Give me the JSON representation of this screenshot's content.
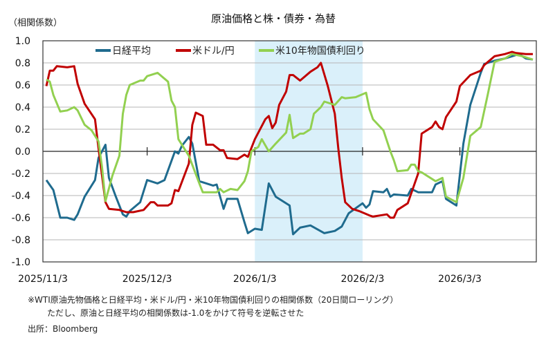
{
  "chart_data": {
    "type": "line",
    "title": "原油価格と株・債券・為替",
    "ylabel": "（相関係数）",
    "ylim": [
      -1.0,
      1.0
    ],
    "yticks": [
      "1.0",
      "0.8",
      "0.6",
      "0.4",
      "0.2",
      "0.0",
      "-0.2",
      "-0.4",
      "-0.6",
      "-0.8",
      "-1.0"
    ],
    "xlim": [
      "2025-11-03",
      "2026-03-25"
    ],
    "xticks": [
      {
        "date": "2025-11-03",
        "label": "2025/11/3"
      },
      {
        "date": "2025-12-03",
        "label": "2025/12/3"
      },
      {
        "date": "2026-01-03",
        "label": "2026/1/3"
      },
      {
        "date": "2026-02-03",
        "label": "2026/2/3"
      },
      {
        "date": "2026-03-03",
        "label": "2026/3/3"
      }
    ],
    "grid": true,
    "legend_placement": "top",
    "highlight_period": {
      "start": "2026-01-03",
      "end": "2026-02-03",
      "color": "#DAF0FA"
    },
    "series": [
      {
        "name": "日経平均",
        "color": "#1F6B8E",
        "points": [
          [
            "2025-11-04",
            -0.26
          ],
          [
            "2025-11-06",
            -0.35
          ],
          [
            "2025-11-08",
            -0.6
          ],
          [
            "2025-11-10",
            -0.6
          ],
          [
            "2025-11-12",
            -0.62
          ],
          [
            "2025-11-13",
            -0.57
          ],
          [
            "2025-11-15",
            -0.41
          ],
          [
            "2025-11-18",
            -0.26
          ],
          [
            "2025-11-19",
            -0.06
          ],
          [
            "2025-11-21",
            0.06
          ],
          [
            "2025-11-22",
            -0.24
          ],
          [
            "2025-11-24",
            -0.41
          ],
          [
            "2025-11-26",
            -0.57
          ],
          [
            "2025-11-27",
            -0.59
          ],
          [
            "2025-11-28",
            -0.54
          ],
          [
            "2025-12-01",
            -0.46
          ],
          [
            "2025-12-03",
            -0.26
          ],
          [
            "2025-12-06",
            -0.29
          ],
          [
            "2025-12-08",
            -0.26
          ],
          [
            "2025-12-11",
            0.0
          ],
          [
            "2025-12-12",
            -0.02
          ],
          [
            "2025-12-13",
            0.05
          ],
          [
            "2025-12-15",
            0.13
          ],
          [
            "2025-12-16",
            0.07
          ],
          [
            "2025-12-18",
            -0.27
          ],
          [
            "2025-12-22",
            -0.31
          ],
          [
            "2025-12-23",
            -0.3
          ],
          [
            "2025-12-24",
            -0.41
          ],
          [
            "2025-12-25",
            -0.52
          ],
          [
            "2025-12-26",
            -0.43
          ],
          [
            "2025-12-29",
            -0.43
          ],
          [
            "2025-12-31",
            -0.64
          ],
          [
            "2026-01-01",
            -0.74
          ],
          [
            "2026-01-03",
            -0.7
          ],
          [
            "2026-01-05",
            -0.71
          ],
          [
            "2026-01-07",
            -0.29
          ],
          [
            "2026-01-09",
            -0.41
          ],
          [
            "2026-01-13",
            -0.49
          ],
          [
            "2026-01-14",
            -0.75
          ],
          [
            "2026-01-16",
            -0.69
          ],
          [
            "2026-01-19",
            -0.67
          ],
          [
            "2026-01-23",
            -0.74
          ],
          [
            "2026-01-26",
            -0.72
          ],
          [
            "2026-01-28",
            -0.68
          ],
          [
            "2026-01-30",
            -0.56
          ],
          [
            "2026-02-03",
            -0.47
          ],
          [
            "2026-02-04",
            -0.51
          ],
          [
            "2026-02-05",
            -0.48
          ],
          [
            "2026-02-06",
            -0.36
          ],
          [
            "2026-02-09",
            -0.37
          ],
          [
            "2026-02-10",
            -0.34
          ],
          [
            "2026-02-11",
            -0.41
          ],
          [
            "2026-02-12",
            -0.39
          ],
          [
            "2026-02-16",
            -0.4
          ],
          [
            "2026-02-17",
            -0.34
          ],
          [
            "2026-02-19",
            -0.37
          ],
          [
            "2026-02-23",
            -0.37
          ],
          [
            "2026-02-24",
            -0.3
          ],
          [
            "2026-02-26",
            -0.27
          ],
          [
            "2026-02-27",
            -0.43
          ],
          [
            "2026-03-02",
            -0.49
          ],
          [
            "2026-03-04",
            0.07
          ],
          [
            "2026-03-06",
            0.42
          ],
          [
            "2026-03-09",
            0.71
          ],
          [
            "2026-03-10",
            0.79
          ],
          [
            "2026-03-13",
            0.82
          ],
          [
            "2026-03-16",
            0.84
          ],
          [
            "2026-03-18",
            0.86
          ],
          [
            "2026-03-20",
            0.88
          ],
          [
            "2026-03-22",
            0.84
          ],
          [
            "2026-03-24",
            0.83
          ]
        ]
      },
      {
        "name": "米ドル/円",
        "color": "#C00000",
        "points": [
          [
            "2025-11-04",
            0.59
          ],
          [
            "2025-11-05",
            0.73
          ],
          [
            "2025-11-06",
            0.73
          ],
          [
            "2025-11-07",
            0.77
          ],
          [
            "2025-11-10",
            0.76
          ],
          [
            "2025-11-12",
            0.77
          ],
          [
            "2025-11-13",
            0.61
          ],
          [
            "2025-11-15",
            0.43
          ],
          [
            "2025-11-18",
            0.29
          ],
          [
            "2025-11-19",
            0.03
          ],
          [
            "2025-11-21",
            -0.46
          ],
          [
            "2025-11-22",
            -0.52
          ],
          [
            "2025-11-25",
            -0.53
          ],
          [
            "2025-11-27",
            -0.55
          ],
          [
            "2025-11-29",
            -0.55
          ],
          [
            "2025-12-02",
            -0.53
          ],
          [
            "2025-12-04",
            -0.46
          ],
          [
            "2025-12-05",
            -0.46
          ],
          [
            "2025-12-06",
            -0.49
          ],
          [
            "2025-12-09",
            -0.49
          ],
          [
            "2025-12-10",
            -0.47
          ],
          [
            "2025-12-11",
            -0.35
          ],
          [
            "2025-12-12",
            -0.36
          ],
          [
            "2025-12-15",
            -0.11
          ],
          [
            "2025-12-16",
            0.24
          ],
          [
            "2025-12-17",
            0.35
          ],
          [
            "2025-12-19",
            0.32
          ],
          [
            "2025-12-20",
            0.06
          ],
          [
            "2025-12-22",
            0.06
          ],
          [
            "2025-12-24",
            0.01
          ],
          [
            "2025-12-25",
            0.01
          ],
          [
            "2025-12-26",
            -0.06
          ],
          [
            "2025-12-29",
            -0.07
          ],
          [
            "2025-12-31",
            -0.03
          ],
          [
            "2026-01-01",
            -0.05
          ],
          [
            "2026-01-03",
            0.11
          ],
          [
            "2026-01-06",
            0.29
          ],
          [
            "2026-01-07",
            0.32
          ],
          [
            "2026-01-08",
            0.21
          ],
          [
            "2026-01-09",
            0.26
          ],
          [
            "2026-01-10",
            0.42
          ],
          [
            "2026-01-12",
            0.54
          ],
          [
            "2026-01-13",
            0.69
          ],
          [
            "2026-01-14",
            0.69
          ],
          [
            "2026-01-16",
            0.64
          ],
          [
            "2026-01-19",
            0.72
          ],
          [
            "2026-01-21",
            0.76
          ],
          [
            "2026-01-22",
            0.8
          ],
          [
            "2026-01-24",
            0.59
          ],
          [
            "2026-01-26",
            0.34
          ],
          [
            "2026-01-27",
            0.03
          ],
          [
            "2026-01-28",
            -0.24
          ],
          [
            "2026-01-29",
            -0.46
          ],
          [
            "2026-01-31",
            -0.52
          ],
          [
            "2026-02-02",
            -0.54
          ],
          [
            "2026-02-05",
            -0.58
          ],
          [
            "2026-02-06",
            -0.59
          ],
          [
            "2026-02-10",
            -0.57
          ],
          [
            "2026-02-11",
            -0.6
          ],
          [
            "2026-02-12",
            -0.6
          ],
          [
            "2026-02-13",
            -0.53
          ],
          [
            "2026-02-16",
            -0.47
          ],
          [
            "2026-02-19",
            -0.2
          ],
          [
            "2026-02-20",
            0.16
          ],
          [
            "2026-02-23",
            0.22
          ],
          [
            "2026-02-24",
            0.27
          ],
          [
            "2026-02-25",
            0.22
          ],
          [
            "2026-02-26",
            0.2
          ],
          [
            "2026-02-27",
            0.31
          ],
          [
            "2026-03-02",
            0.45
          ],
          [
            "2026-03-03",
            0.59
          ],
          [
            "2026-03-06",
            0.69
          ],
          [
            "2026-03-09",
            0.73
          ],
          [
            "2026-03-10",
            0.78
          ],
          [
            "2026-03-13",
            0.86
          ],
          [
            "2026-03-16",
            0.88
          ],
          [
            "2026-03-18",
            0.9
          ],
          [
            "2026-03-19",
            0.89
          ],
          [
            "2026-03-22",
            0.88
          ],
          [
            "2026-03-24",
            0.88
          ]
        ]
      },
      {
        "name": "米10年物国債利回り",
        "color": "#92D050",
        "points": [
          [
            "2025-11-04",
            0.65
          ],
          [
            "2025-11-05",
            0.63
          ],
          [
            "2025-11-06",
            0.51
          ],
          [
            "2025-11-08",
            0.36
          ],
          [
            "2025-11-10",
            0.37
          ],
          [
            "2025-11-12",
            0.4
          ],
          [
            "2025-11-13",
            0.37
          ],
          [
            "2025-11-15",
            0.24
          ],
          [
            "2025-11-17",
            0.19
          ],
          [
            "2025-11-19",
            0.09
          ],
          [
            "2025-11-20",
            -0.14
          ],
          [
            "2025-11-21",
            -0.45
          ],
          [
            "2025-11-23",
            -0.22
          ],
          [
            "2025-11-25",
            -0.04
          ],
          [
            "2025-11-26",
            0.34
          ],
          [
            "2025-11-27",
            0.51
          ],
          [
            "2025-11-28",
            0.6
          ],
          [
            "2025-12-01",
            0.64
          ],
          [
            "2025-12-02",
            0.64
          ],
          [
            "2025-12-03",
            0.68
          ],
          [
            "2025-12-06",
            0.71
          ],
          [
            "2025-12-09",
            0.63
          ],
          [
            "2025-12-10",
            0.46
          ],
          [
            "2025-12-11",
            0.4
          ],
          [
            "2025-12-12",
            0.11
          ],
          [
            "2025-12-15",
            -0.04
          ],
          [
            "2025-12-18",
            -0.29
          ],
          [
            "2025-12-19",
            -0.37
          ],
          [
            "2025-12-23",
            -0.37
          ],
          [
            "2025-12-24",
            -0.34
          ],
          [
            "2025-12-25",
            -0.37
          ],
          [
            "2025-12-27",
            -0.34
          ],
          [
            "2025-12-29",
            -0.35
          ],
          [
            "2025-12-31",
            -0.27
          ],
          [
            "2026-01-01",
            -0.18
          ],
          [
            "2026-01-02",
            0.0
          ],
          [
            "2026-01-04",
            0.04
          ],
          [
            "2026-01-05",
            0.11
          ],
          [
            "2026-01-07",
            0.0
          ],
          [
            "2026-01-09",
            0.07
          ],
          [
            "2026-01-12",
            0.17
          ],
          [
            "2026-01-13",
            0.33
          ],
          [
            "2026-01-14",
            0.12
          ],
          [
            "2026-01-16",
            0.16
          ],
          [
            "2026-01-17",
            0.16
          ],
          [
            "2026-01-19",
            0.2
          ],
          [
            "2026-01-20",
            0.34
          ],
          [
            "2026-01-22",
            0.4
          ],
          [
            "2026-01-23",
            0.45
          ],
          [
            "2026-01-26",
            0.42
          ],
          [
            "2026-01-28",
            0.49
          ],
          [
            "2026-01-29",
            0.48
          ],
          [
            "2026-02-01",
            0.49
          ],
          [
            "2026-02-04",
            0.53
          ],
          [
            "2026-02-05",
            0.38
          ],
          [
            "2026-02-06",
            0.29
          ],
          [
            "2026-02-09",
            0.19
          ],
          [
            "2026-02-11",
            0.0
          ],
          [
            "2026-02-12",
            -0.08
          ],
          [
            "2026-02-13",
            -0.18
          ],
          [
            "2026-02-16",
            -0.17
          ],
          [
            "2026-02-17",
            -0.12
          ],
          [
            "2026-02-18",
            -0.12
          ],
          [
            "2026-02-19",
            -0.18
          ],
          [
            "2026-02-20",
            -0.19
          ],
          [
            "2026-02-24",
            -0.27
          ],
          [
            "2026-02-26",
            -0.24
          ],
          [
            "2026-02-27",
            -0.41
          ],
          [
            "2026-03-02",
            -0.46
          ],
          [
            "2026-03-04",
            -0.24
          ],
          [
            "2026-03-06",
            0.14
          ],
          [
            "2026-03-09",
            0.22
          ],
          [
            "2026-03-11",
            0.51
          ],
          [
            "2026-03-13",
            0.81
          ],
          [
            "2026-03-16",
            0.84
          ],
          [
            "2026-03-18",
            0.88
          ],
          [
            "2026-03-21",
            0.86
          ],
          [
            "2026-03-24",
            0.83
          ]
        ]
      }
    ]
  },
  "notes": {
    "line1": "※WTI原油先物価格と日経平均・米ドル/円・米10年物国債利回りの相関係数（20日間ローリング）",
    "line2": "ただし、原油と日経平均の相関係数は-1.0をかけて符号を逆転させた",
    "source": "出所：Bloomberg"
  }
}
